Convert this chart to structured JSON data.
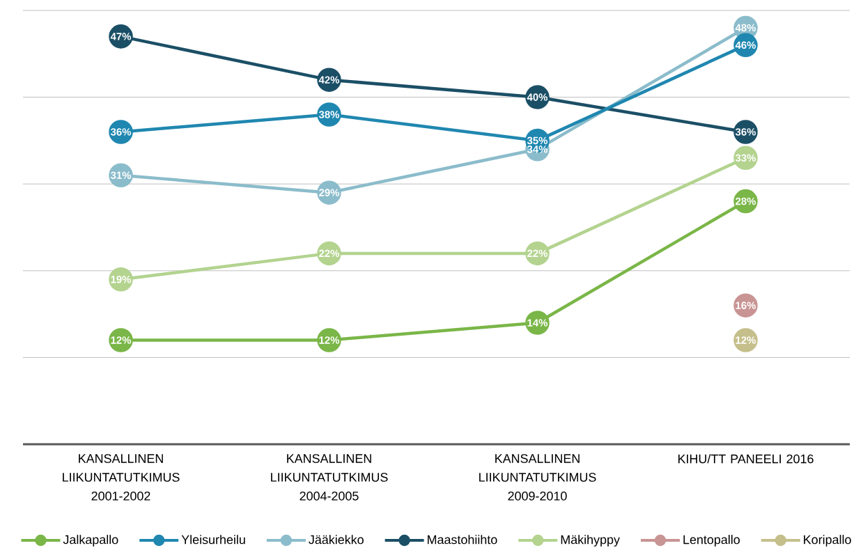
{
  "chart_data": {
    "type": "line",
    "categories": [
      "KANSALLINEN LIIKUNTATUTKIMUS 2001-2002",
      "KANSALLINEN LIIKUNTATUTKIMUS 2004-2005",
      "KANSALLINEN LIIKUNTATUTKIMUS 2009-2010",
      "KIHU/TT PANEELI 2016"
    ],
    "series": [
      {
        "name": "Jalkapallo",
        "color": "#7ab648",
        "values": [
          12,
          12,
          14,
          28
        ],
        "value_labels": [
          "12%",
          "12%",
          "14%",
          "28%"
        ]
      },
      {
        "name": "Yleisurheilu",
        "color": "#1f87b0",
        "values": [
          36,
          38,
          35,
          46
        ],
        "value_labels": [
          "36%",
          "38%",
          "35%",
          "46%"
        ]
      },
      {
        "name": "Jääkiekko",
        "color": "#8bbccb",
        "values": [
          31,
          29,
          34,
          48
        ],
        "value_labels": [
          "31%",
          "29%",
          "34%",
          "48%"
        ]
      },
      {
        "name": "Maastohiihto",
        "color": "#1b4f66",
        "values": [
          47,
          42,
          40,
          36
        ],
        "value_labels": [
          "47%",
          "42%",
          "40%",
          "36%"
        ]
      },
      {
        "name": "Mäkihyppy",
        "color": "#b3d38f",
        "values": [
          19,
          22,
          22,
          33
        ],
        "value_labels": [
          "19%",
          "22%",
          "22%",
          "33%"
        ]
      },
      {
        "name": "Lentopallo",
        "color": "#c99494",
        "values": [
          null,
          null,
          null,
          16
        ],
        "value_labels": [
          null,
          null,
          null,
          "16%"
        ]
      },
      {
        "name": "Koripallo",
        "color": "#c5bf8b",
        "values": [
          null,
          null,
          null,
          12
        ],
        "value_labels": [
          null,
          null,
          null,
          "12%"
        ]
      }
    ],
    "ylim": [
      0,
      50
    ],
    "yticks": [
      {
        "value": 10,
        "label": null
      },
      {
        "value": 20,
        "label": null
      },
      {
        "value": 30,
        "label": null
      },
      {
        "value": 40,
        "label": null
      },
      {
        "value": 50,
        "label": null
      }
    ],
    "tick_labels": "x",
    "grid": "y",
    "legend": "bottom",
    "marker": "circle",
    "line_style": "solid"
  }
}
